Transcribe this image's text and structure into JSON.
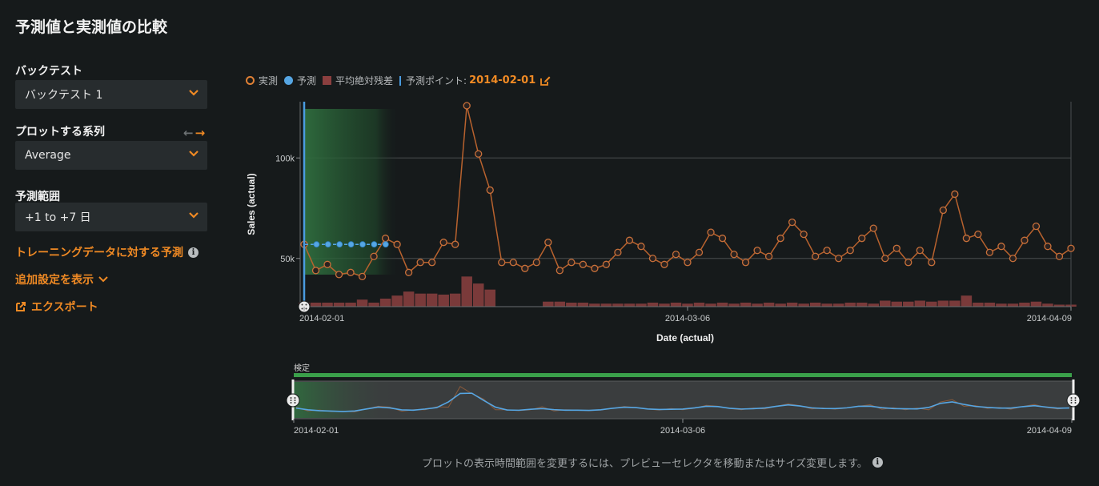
{
  "page": {
    "title": "予測値と実測値の比較"
  },
  "sidebar": {
    "backtest_label": "バックテスト",
    "backtest_value": "バックテスト 1",
    "series_label": "プロットする系列",
    "series_value": "Average",
    "range_label": "予測範囲",
    "range_value": "+1 to +7 日",
    "training_link": "トレーニングデータに対する予測",
    "more_settings": "追加設定を表示",
    "export": "エクスポート"
  },
  "legend": {
    "actual": "実測",
    "predicted": "予測",
    "mae": "平均絶対残差",
    "forecast_point_label": "予測ポイント:",
    "forecast_point_date": "2014-02-01"
  },
  "preview": {
    "validation_label": "検定",
    "hint": "プロットの表示時間範囲を変更するには、プレビューセレクタを移動またはサイズ変更します。"
  },
  "colors": {
    "accent": "#f08a24",
    "actual": "#c8703a",
    "predicted": "#56a6e3",
    "residual": "#7a3a3a",
    "validation": "#3aa04a"
  },
  "chart_data": {
    "type": "line",
    "xlabel": "Date (actual)",
    "ylabel": "Sales (actual)",
    "x_ticks": [
      "2014-02-01",
      "2014-03-06",
      "2014-04-09"
    ],
    "y_ticks": [
      "50k",
      "100k"
    ],
    "ylim": [
      26000,
      128000
    ],
    "grid": true,
    "series": [
      {
        "name": "実測",
        "values": [
          57000,
          44000,
          47000,
          42000,
          43000,
          41000,
          51000,
          60000,
          57000,
          43000,
          48000,
          48000,
          58000,
          57000,
          126000,
          102000,
          84000,
          48000,
          48000,
          45000,
          48000,
          58000,
          44000,
          48000,
          47000,
          45000,
          47000,
          53000,
          59000,
          56000,
          50000,
          47000,
          52000,
          48000,
          53000,
          63000,
          60000,
          52000,
          48000,
          54000,
          51000,
          60000,
          68000,
          62000,
          51000,
          54000,
          50000,
          54000,
          60000,
          65000,
          50000,
          55000,
          48000,
          54000,
          48000,
          74000,
          82000,
          60000,
          62000,
          53000,
          56000,
          50000,
          59000,
          66000,
          56000,
          51000,
          55000
        ]
      },
      {
        "name": "予測",
        "values": [
          57000,
          57000,
          57000,
          57000,
          57000,
          57000,
          57000,
          57000
        ]
      },
      {
        "name": "平均絶対残差",
        "values": [
          2000,
          2000,
          2000,
          2000,
          2000,
          3500,
          2000,
          4000,
          5500,
          7500,
          6500,
          6500,
          6000,
          6500,
          15000,
          11500,
          8500,
          0,
          0,
          0,
          0,
          2500,
          2500,
          2000,
          2000,
          1500,
          1500,
          1500,
          1500,
          1500,
          2000,
          1500,
          2000,
          1500,
          2000,
          1500,
          2000,
          1500,
          2000,
          1500,
          2000,
          1500,
          2000,
          1500,
          2000,
          1500,
          1500,
          2000,
          2000,
          1500,
          3000,
          2500,
          2500,
          3000,
          2500,
          3000,
          3000,
          5500,
          2000,
          2000,
          1500,
          1500,
          2000,
          2500,
          1500,
          1000,
          1000
        ]
      }
    ]
  }
}
